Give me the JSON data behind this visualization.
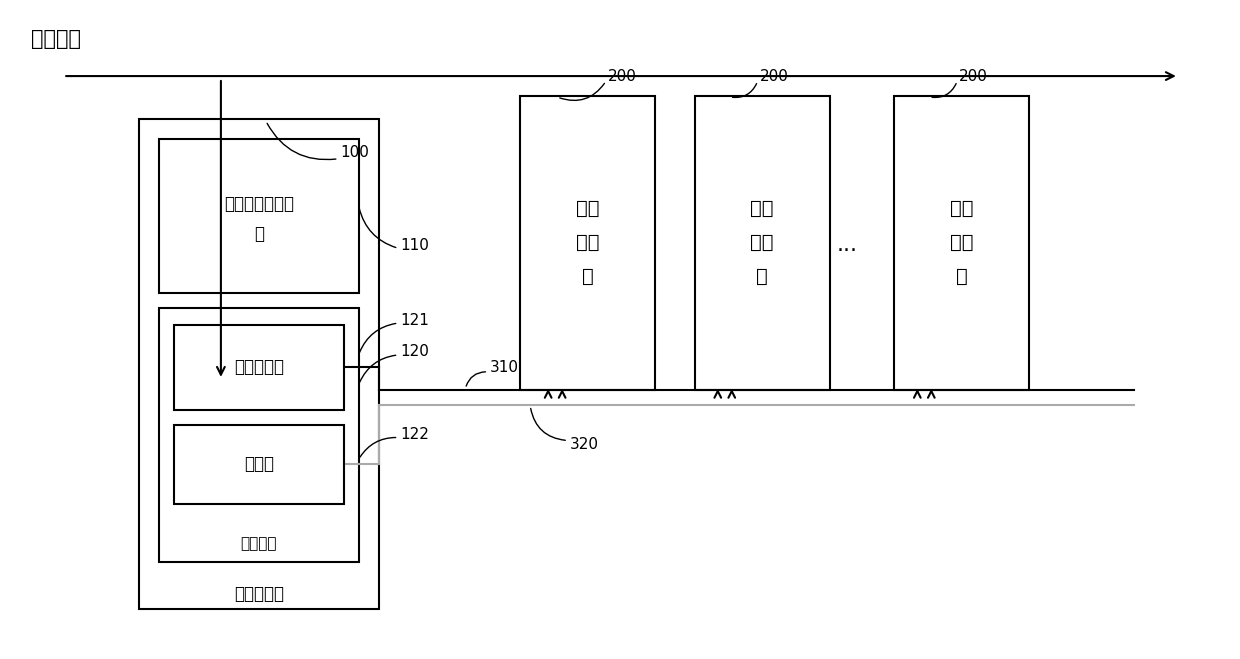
{
  "bg_color": "#ffffff",
  "title_text": "交流市电",
  "label_100": "100",
  "label_110": "110",
  "label_120": "120",
  "label_121": "121",
  "label_122": "122",
  "label_200": "200",
  "label_310": "310",
  "label_320": "320",
  "box_main_label": "集中配电柜",
  "box_bbu_label_line1": "集中基带处理单",
  "box_bbu_label_line2": "元",
  "box_power_label": "集中电源",
  "box_inverter_label": "双向变流器",
  "box_battery_label": "电池组",
  "pole_label": "抱杆\n配电\n柜",
  "line_color": "#000000",
  "gray_color": "#aaaaaa",
  "line_width": 1.5,
  "thin_lw": 1.0
}
